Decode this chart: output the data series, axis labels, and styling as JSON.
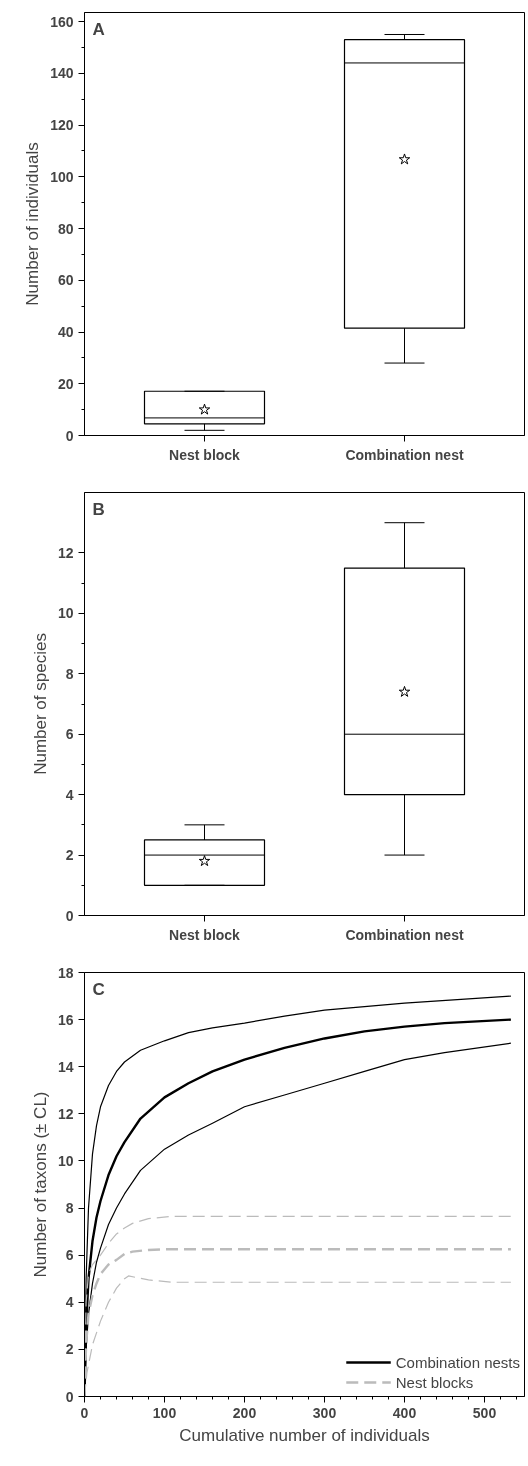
{
  "chart_data": [
    {
      "type": "box",
      "title": "A",
      "ylabel": "Number of individuals",
      "categories": [
        "Nest block",
        "Combination nest"
      ],
      "boxes": [
        {
          "low": 2,
          "q1": 4.5,
          "median": 6.8,
          "q3": 17.1,
          "high": 17.1,
          "mean": 10.0
        },
        {
          "low": 28,
          "q1": 41.5,
          "median": 144,
          "q3": 153,
          "high": 155,
          "mean": 106.7
        }
      ],
      "ylim": [
        0,
        163.5
      ],
      "yticks": [
        0,
        20,
        40,
        60,
        80,
        100,
        120,
        140,
        160
      ],
      "grid": false,
      "marker": "star"
    },
    {
      "type": "box",
      "title": "B",
      "ylabel": "Number of species",
      "categories": [
        "Nest block",
        "Combination nest"
      ],
      "boxes": [
        {
          "low": 1,
          "q1": 1,
          "median": 2,
          "q3": 2.5,
          "high": 3,
          "mean": 1.8
        },
        {
          "low": 2,
          "q1": 4,
          "median": 6,
          "q3": 11.5,
          "high": 13,
          "mean": 7.4
        }
      ],
      "ylim": [
        0,
        14
      ],
      "yticks": [
        0,
        2,
        4,
        6,
        8,
        10,
        12
      ],
      "grid": false,
      "marker": "star"
    },
    {
      "type": "line",
      "title": "C",
      "xlabel": "Cumulative number of individuals",
      "ylabel": "Number of taxons (± CL)",
      "xlim": [
        0,
        550
      ],
      "xticks": [
        0,
        100,
        200,
        300,
        400,
        500
      ],
      "ylim": [
        0,
        18
      ],
      "yticks": [
        0,
        2,
        4,
        6,
        8,
        10,
        12,
        14,
        16,
        18
      ],
      "grid": false,
      "legend": "bottom right",
      "marker": "none",
      "series": [
        {
          "name": "Combination nests",
          "color": "#000000",
          "line_style": "solid",
          "x": [
            0,
            2,
            5,
            10,
            15,
            20,
            30,
            40,
            50,
            70,
            100,
            130,
            160,
            200,
            250,
            300,
            350,
            400,
            450,
            533
          ],
          "values": [
            0,
            3,
            5,
            6.6,
            7.6,
            8.3,
            9.4,
            10.2,
            10.8,
            11.8,
            12.7,
            13.3,
            13.8,
            14.3,
            14.8,
            15.2,
            15.5,
            15.7,
            15.85,
            16.0
          ]
        },
        {
          "color": "#000000",
          "line_style": "solid",
          "x": [
            0,
            2,
            5,
            10,
            15,
            20,
            30,
            40,
            50,
            70,
            100,
            130,
            160,
            200,
            250,
            300,
            400,
            533
          ],
          "values": [
            0,
            5,
            8,
            10.3,
            11.5,
            12.3,
            13.2,
            13.8,
            14.2,
            14.7,
            15.1,
            15.45,
            15.65,
            15.85,
            16.15,
            16.4,
            16.7,
            17.0
          ]
        },
        {
          "color": "#000000",
          "line_style": "solid",
          "x": [
            0,
            2,
            5,
            10,
            15,
            20,
            30,
            40,
            50,
            70,
            100,
            130,
            160,
            200,
            250,
            300,
            350,
            400,
            450,
            533
          ],
          "values": [
            0,
            2,
            3.5,
            4.8,
            5.7,
            6.3,
            7.3,
            8.0,
            8.6,
            9.6,
            10.5,
            11.1,
            11.6,
            12.3,
            12.8,
            13.3,
            13.8,
            14.3,
            14.6,
            15.0
          ]
        },
        {
          "name": "Nest blocks",
          "color": "#bbbbbb",
          "line_style": "dashed",
          "x": [
            0,
            2,
            5,
            10,
            15,
            20,
            30,
            40,
            50,
            60,
            80,
            100,
            533
          ],
          "values": [
            0,
            2.2,
            3.5,
            4.3,
            4.8,
            5.2,
            5.6,
            5.8,
            6.05,
            6.15,
            6.22,
            6.25,
            6.25
          ]
        },
        {
          "color": "#bbbbbb",
          "line_style": "dashed",
          "x": [
            0,
            2,
            5,
            10,
            20,
            30,
            40,
            50,
            60,
            80,
            110,
            533
          ],
          "values": [
            0,
            4,
            5.2,
            5.6,
            6.0,
            6.5,
            6.9,
            7.15,
            7.35,
            7.55,
            7.65,
            7.65
          ]
        },
        {
          "color": "#bbbbbb",
          "line_style": "dashed",
          "x": [
            0,
            3,
            10,
            20,
            30,
            40,
            50,
            55,
            65,
            80,
            110,
            533
          ],
          "values": [
            0,
            1,
            2.2,
            3.2,
            4.0,
            4.6,
            5.0,
            5.12,
            5.05,
            4.95,
            4.85,
            4.85
          ]
        }
      ]
    }
  ]
}
